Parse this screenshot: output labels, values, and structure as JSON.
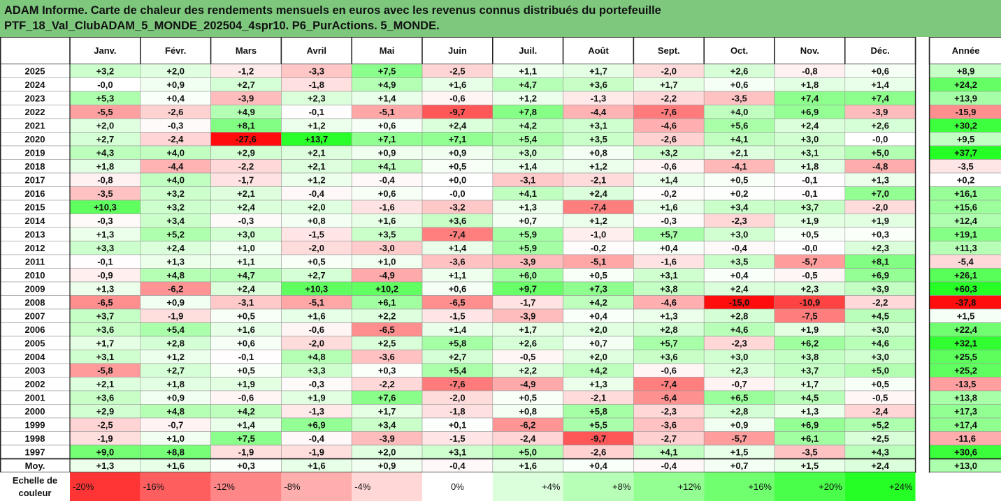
{
  "report": {
    "title_line1": "ADAM Informe. Carte de chaleur des rendements mensuels en euros avec les revenus connus distribués du portefeuille",
    "title_line2": "PTF_18_Val_ClubADAM_5_MONDE_202504_4spr10. P6_PurActions. 5_MONDE."
  },
  "chart_data": {
    "type": "heatmap",
    "title": "ADAM Informe. Carte de chaleur des rendements mensuels en euros avec les revenus connus distribués du portefeuille PTF_18_Val_ClubADAM_5_MONDE_202504_4spr10. P6_PurActions. 5_MONDE.",
    "columns": [
      "Janv.",
      "Févr.",
      "Mars",
      "Avril",
      "Mai",
      "Juin",
      "Juil.",
      "Août",
      "Sept.",
      "Oct.",
      "Nov.",
      "Déc."
    ],
    "year_column": "Année",
    "rows": [
      {
        "label": "2025",
        "values": [
          "+3,2",
          "+2,0",
          "-1,2",
          "-3,3",
          "+7,5",
          "-2,5",
          "+1,1",
          "+1,7",
          "-2,0",
          "+2,6",
          "-0,8",
          "+0,6"
        ],
        "year": "+8,9"
      },
      {
        "label": "2024",
        "values": [
          "-0,0",
          "+0,9",
          "+2,7",
          "-1,8",
          "+4,9",
          "+1,6",
          "+4,7",
          "+3,6",
          "+1,7",
          "+0,6",
          "+1,8",
          "+1,4"
        ],
        "year": "+24,2"
      },
      {
        "label": "2023",
        "values": [
          "+5,3",
          "+0,4",
          "-3,9",
          "+2,3",
          "+1,4",
          "-0,6",
          "+1,2",
          "-1,3",
          "-2,2",
          "-3,5",
          "+7,4",
          "+7,4"
        ],
        "year": "+13,9"
      },
      {
        "label": "2022",
        "values": [
          "-5,5",
          "-2,6",
          "+4,9",
          "-0,1",
          "-5,1",
          "-9,7",
          "+7,8",
          "-4,4",
          "-7,6",
          "+4,0",
          "+6,9",
          "-3,9"
        ],
        "year": "-15,9"
      },
      {
        "label": "2021",
        "values": [
          "+2,0",
          "-0,3",
          "+8,1",
          "+1,2",
          "+0,6",
          "+2,4",
          "+4,2",
          "+3,1",
          "-4,6",
          "+5,6",
          "+2,4",
          "+2,6"
        ],
        "year": "+30,2"
      },
      {
        "label": "2020",
        "values": [
          "+2,7",
          "-2,4",
          "-27,6",
          "+13,7",
          "+7,1",
          "+7,1",
          "+5,4",
          "+3,5",
          "-2,6",
          "+4,1",
          "+3,0",
          "-0,0"
        ],
        "year": "+9,5"
      },
      {
        "label": "2019",
        "values": [
          "+4,3",
          "+4,0",
          "+2,9",
          "+2,1",
          "+0,9",
          "+0,9",
          "+3,0",
          "+0,8",
          "+3,2",
          "+2,1",
          "+3,1",
          "+5,0"
        ],
        "year": "+37,7"
      },
      {
        "label": "2018",
        "values": [
          "+1,8",
          "-4,4",
          "-2,2",
          "+2,1",
          "+4,1",
          "+0,5",
          "+1,4",
          "+1,2",
          "-0,6",
          "-4,1",
          "+1,8",
          "-4,8"
        ],
        "year": "-3,5"
      },
      {
        "label": "2017",
        "values": [
          "-0,8",
          "+4,0",
          "-1,7",
          "+1,2",
          "-0,4",
          "+0,0",
          "-3,1",
          "-2,1",
          "+1,4",
          "+0,5",
          "-0,1",
          "+1,3"
        ],
        "year": "+0,2"
      },
      {
        "label": "2016",
        "values": [
          "-3,5",
          "+3,2",
          "+2,1",
          "-0,4",
          "+0,6",
          "-0,0",
          "+4,1",
          "+2,4",
          "-0,2",
          "+0,2",
          "-0,1",
          "+7,0"
        ],
        "year": "+16,1"
      },
      {
        "label": "2015",
        "values": [
          "+10,3",
          "+3,2",
          "+2,4",
          "+2,0",
          "-1,6",
          "-3,2",
          "+1,3",
          "-7,4",
          "+1,6",
          "+3,4",
          "+3,7",
          "-2,0"
        ],
        "year": "+15,6"
      },
      {
        "label": "2014",
        "values": [
          "-0,3",
          "+3,4",
          "-0,3",
          "+0,8",
          "+1,6",
          "+3,6",
          "+0,7",
          "+1,2",
          "-0,3",
          "-2,3",
          "+1,9",
          "+1,9"
        ],
        "year": "+12,4"
      },
      {
        "label": "2013",
        "values": [
          "+1,3",
          "+5,2",
          "+3,0",
          "-1,5",
          "+3,5",
          "-7,4",
          "+5,9",
          "-1,0",
          "+5,7",
          "+3,0",
          "+0,5",
          "+0,3"
        ],
        "year": "+19,1"
      },
      {
        "label": "2012",
        "values": [
          "+3,3",
          "+2,4",
          "+1,0",
          "-2,0",
          "-3,0",
          "+1,4",
          "+5,9",
          "-0,2",
          "+0,4",
          "-0,4",
          "-0,0",
          "+2,3"
        ],
        "year": "+11,3"
      },
      {
        "label": "2011",
        "values": [
          "-0,1",
          "+1,3",
          "+1,1",
          "+0,5",
          "+1,0",
          "-3,6",
          "-3,9",
          "-5,1",
          "-1,6",
          "+3,5",
          "-5,7",
          "+8,1"
        ],
        "year": "-5,4"
      },
      {
        "label": "2010",
        "values": [
          "-0,9",
          "+4,8",
          "+4,7",
          "+2,7",
          "-4,9",
          "+1,1",
          "+6,0",
          "+0,5",
          "+3,1",
          "+0,4",
          "-0,5",
          "+6,9"
        ],
        "year": "+26,1"
      },
      {
        "label": "2009",
        "values": [
          "+1,3",
          "-6,2",
          "+2,4",
          "+10,3",
          "+10,2",
          "+0,6",
          "+9,7",
          "+7,3",
          "+3,8",
          "+2,4",
          "+2,3",
          "+3,9"
        ],
        "year": "+60,3"
      },
      {
        "label": "2008",
        "values": [
          "-6,5",
          "+0,9",
          "-3,1",
          "-5,1",
          "+6,1",
          "-6,5",
          "-1,7",
          "+4,2",
          "-4,6",
          "-15,0",
          "-10,9",
          "-2,2"
        ],
        "year": "-37,8"
      },
      {
        "label": "2007",
        "values": [
          "+3,7",
          "-1,9",
          "+0,5",
          "+1,6",
          "+2,2",
          "-1,5",
          "-3,9",
          "+0,4",
          "+1,3",
          "+2,8",
          "-7,5",
          "+4,5"
        ],
        "year": "+1,5"
      },
      {
        "label": "2006",
        "values": [
          "+3,6",
          "+5,4",
          "+1,6",
          "-0,6",
          "-6,5",
          "+1,4",
          "+1,7",
          "+2,0",
          "+2,8",
          "+4,6",
          "+1,9",
          "+3,0"
        ],
        "year": "+22,4"
      },
      {
        "label": "2005",
        "values": [
          "+1,7",
          "+2,8",
          "+0,6",
          "-2,0",
          "+2,5",
          "+5,8",
          "+2,6",
          "+0,7",
          "+5,7",
          "-2,3",
          "+6,2",
          "+4,6"
        ],
        "year": "+32,1"
      },
      {
        "label": "2004",
        "values": [
          "+3,1",
          "+1,2",
          "-0,1",
          "+4,8",
          "-3,6",
          "+2,7",
          "-0,5",
          "+2,0",
          "+3,6",
          "+3,0",
          "+3,8",
          "+3,0"
        ],
        "year": "+25,5"
      },
      {
        "label": "2003",
        "values": [
          "-5,8",
          "+2,7",
          "+0,5",
          "+3,3",
          "+0,3",
          "+5,4",
          "+2,2",
          "+4,2",
          "-0,6",
          "+2,3",
          "+3,7",
          "+5,0"
        ],
        "year": "+25,2"
      },
      {
        "label": "2002",
        "values": [
          "+2,1",
          "+1,8",
          "+1,9",
          "-0,3",
          "-2,2",
          "-7,6",
          "-4,9",
          "+1,3",
          "-7,4",
          "-0,7",
          "+1,7",
          "+0,5"
        ],
        "year": "-13,5"
      },
      {
        "label": "2001",
        "values": [
          "+3,6",
          "+0,9",
          "-0,6",
          "+1,9",
          "+7,6",
          "-2,0",
          "+0,5",
          "-2,1",
          "-6,4",
          "+6,5",
          "+4,5",
          "-0,5"
        ],
        "year": "+13,8"
      },
      {
        "label": "2000",
        "values": [
          "+2,9",
          "+4,8",
          "+4,2",
          "-1,3",
          "+1,7",
          "-1,8",
          "+0,8",
          "+5,8",
          "-2,3",
          "+2,8",
          "+1,3",
          "-2,4"
        ],
        "year": "+17,3"
      },
      {
        "label": "1999",
        "values": [
          "-2,5",
          "-0,7",
          "+1,4",
          "+6,9",
          "+3,4",
          "+0,1",
          "-6,2",
          "+5,5",
          "-3,6",
          "+0,9",
          "+6,9",
          "+5,2"
        ],
        "year": "+17,4"
      },
      {
        "label": "1998",
        "values": [
          "-1,9",
          "+1,0",
          "+7,5",
          "-0,4",
          "-3,9",
          "-1,5",
          "-2,4",
          "-9,7",
          "-2,7",
          "-5,7",
          "+6,1",
          "+2,5"
        ],
        "year": "-11,6"
      },
      {
        "label": "1997",
        "values": [
          "+9,0",
          "+8,8",
          "-1,9",
          "-1,9",
          "+2,0",
          "+3,1",
          "+5,0",
          "-2,6",
          "+4,1",
          "+1,5",
          "-3,5",
          "+4,3"
        ],
        "year": "+30,6"
      }
    ],
    "average_row": {
      "label": "Moy.",
      "values": [
        "+1,3",
        "+1,6",
        "+0,3",
        "+1,6",
        "+0,9",
        "-0,4",
        "+1,6",
        "+0,4",
        "-0,4",
        "+0,7",
        "+1,5",
        "+2,4"
      ],
      "year": "+13,0"
    },
    "scale": {
      "label": "Echelle de couleur",
      "ticks": [
        "-20%",
        "-16%",
        "-12%",
        "-8%",
        "-4%",
        "0%",
        "+4%",
        "+8%",
        "+12%",
        "+16%",
        "+20%",
        "+24%"
      ],
      "tick_values": [
        -20,
        -16,
        -12,
        -8,
        -4,
        0,
        4,
        8,
        12,
        16,
        20,
        24
      ]
    },
    "colors": {
      "negative": "#ff0000",
      "neutral": "#ffffff",
      "positive": "#00ff00",
      "title_bg": "#7ec87e"
    }
  }
}
